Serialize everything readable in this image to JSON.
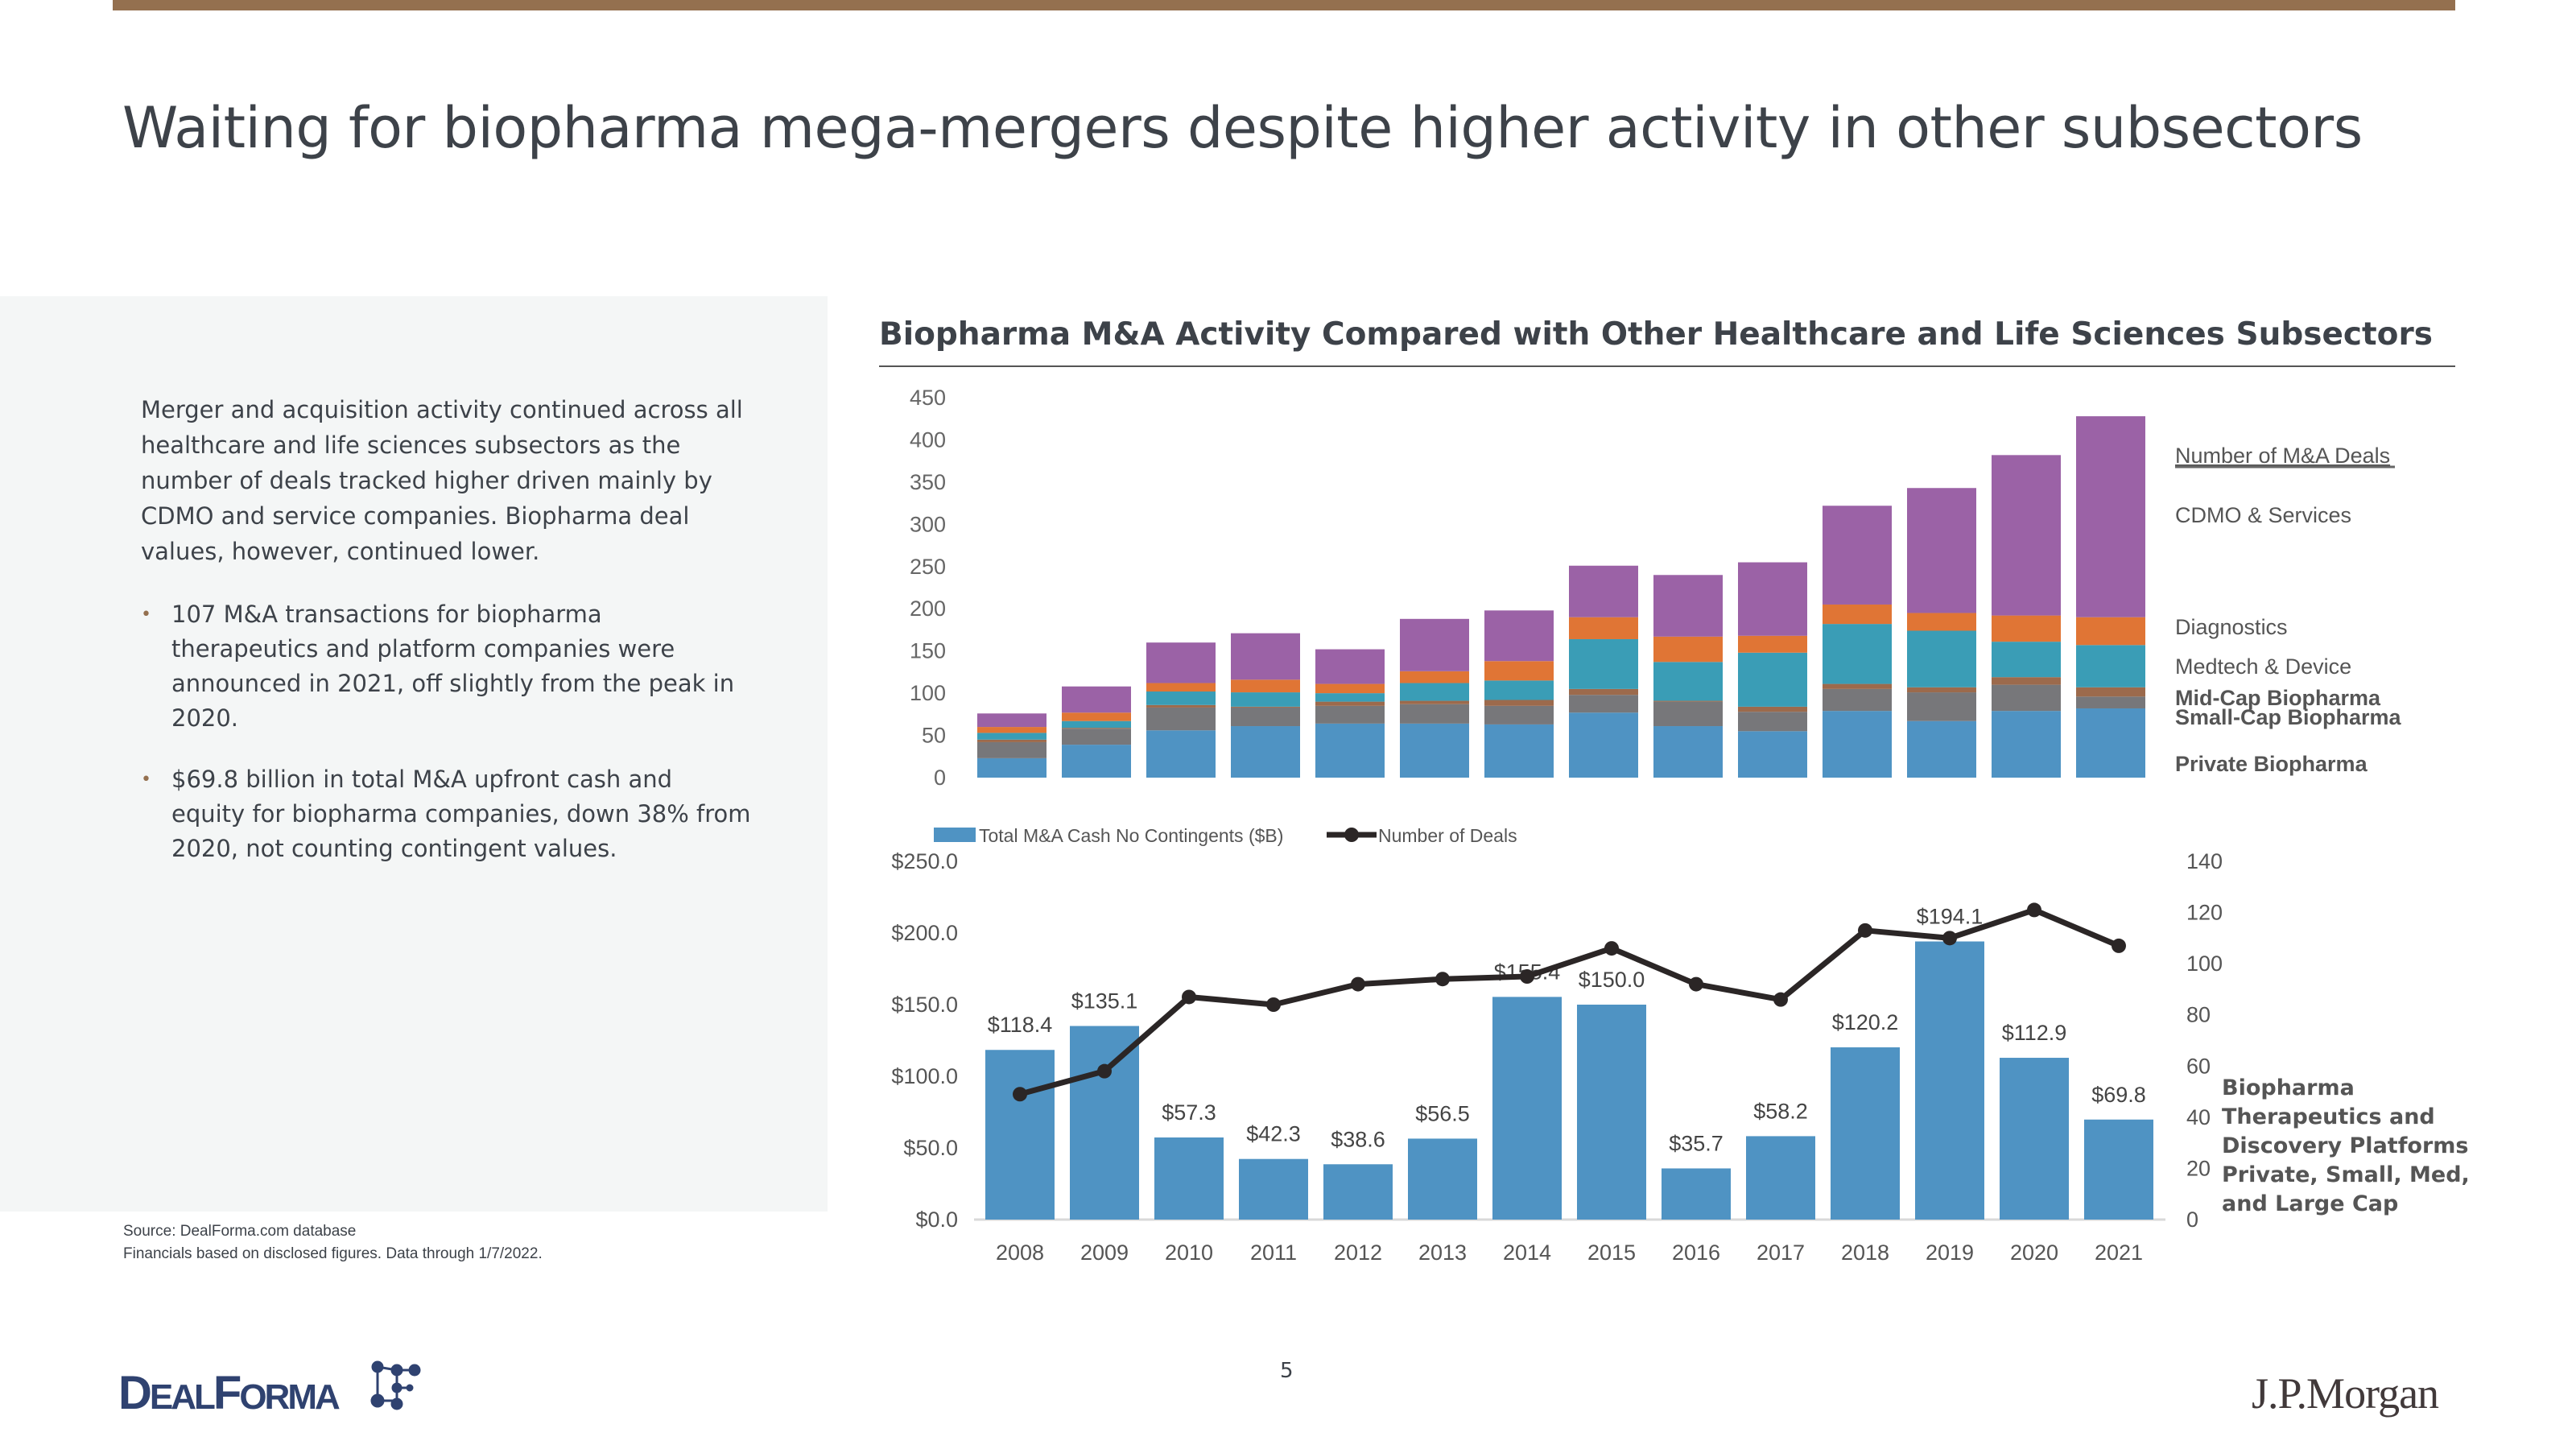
{
  "page": {
    "title": "Waiting for biopharma mega-mergers despite higher activity in other subsectors",
    "page_number": "5",
    "accent_color": "#94704f"
  },
  "summary": {
    "paragraph": "Merger and acquisition activity continued across all healthcare and life sciences subsectors as the number of deals tracked higher driven mainly by CDMO and service companies. Biopharma deal values, however, continued lower.",
    "bullets": [
      "107 M&A transactions for biopharma therapeutics and platform companies were announced in 2021, off slightly from the peak in 2020.",
      "$69.8 billion in total M&A upfront cash and equity for biopharma companies, down 38% from 2020, not counting contingent values."
    ]
  },
  "footer": {
    "source_line1": "Source: DealForma.com database",
    "source_line2": "Financials based on disclosed figures. Data through 1/7/2022.",
    "logo_left": "DealForma",
    "logo_right": "J.P.Morgan"
  },
  "chart_data": [
    {
      "type": "bar",
      "stacked": true,
      "title": "Biopharma M&A Activity Compared with Other Healthcare and Life Sciences Subsectors",
      "legend_title": "Number of M&A Deals",
      "categories": [
        "2008",
        "2009",
        "2010",
        "2011",
        "2012",
        "2013",
        "2014",
        "2015",
        "2016",
        "2017",
        "2018",
        "2019",
        "2020",
        "2021"
      ],
      "ylim": [
        0,
        450
      ],
      "yticks": [
        "0",
        "50",
        "100",
        "150",
        "200",
        "250",
        "300",
        "350",
        "400",
        "450"
      ],
      "series": [
        {
          "name": "Private Biopharma",
          "color": "#4f93c3",
          "values": [
            23,
            39,
            56,
            61,
            64,
            64,
            63,
            77,
            61,
            55,
            79,
            67,
            79,
            82
          ]
        },
        {
          "name": "Small-Cap Biopharma",
          "color": "#77777a",
          "values": [
            19,
            19,
            27,
            22,
            21,
            23,
            22,
            21,
            29,
            23,
            26,
            34,
            31,
            14
          ]
        },
        {
          "name": "Mid-Cap Biopharma",
          "color": "#9c6a4c",
          "values": [
            3,
            1,
            3,
            1,
            5,
            4,
            7,
            7,
            1,
            6,
            6,
            6,
            9,
            11
          ]
        },
        {
          "name": "Medtech & Device",
          "color": "#3a9db6",
          "values": [
            8,
            8,
            16,
            17,
            10,
            21,
            23,
            59,
            46,
            64,
            71,
            67,
            42,
            50
          ]
        },
        {
          "name": "Diagnostics",
          "color": "#e07535",
          "values": [
            7,
            10,
            10,
            15,
            11,
            14,
            23,
            26,
            30,
            20,
            23,
            21,
            31,
            33
          ]
        },
        {
          "name": "CDMO & Services",
          "color": "#9b62a6",
          "values": [
            16,
            31,
            48,
            55,
            41,
            62,
            60,
            61,
            73,
            87,
            117,
            148,
            190,
            238
          ]
        }
      ]
    },
    {
      "type": "bar",
      "title": "",
      "categories": [
        "2008",
        "2009",
        "2010",
        "2011",
        "2012",
        "2013",
        "2014",
        "2015",
        "2016",
        "2017",
        "2018",
        "2019",
        "2020",
        "2021"
      ],
      "ylim": [
        0,
        250
      ],
      "yticks": [
        "$0.0",
        "$50.0",
        "$100.0",
        "$150.0",
        "$200.0",
        "$250.0"
      ],
      "y2lim": [
        0,
        140
      ],
      "y2ticks": [
        "0",
        "20",
        "40",
        "60",
        "80",
        "100",
        "120",
        "140"
      ],
      "series": [
        {
          "name": "Total M&A Cash No Contingents ($B)",
          "type": "bar",
          "axis": "left",
          "color": "#4f93c3",
          "values": [
            118.4,
            135.1,
            57.3,
            42.3,
            38.6,
            56.5,
            155.4,
            150.0,
            35.7,
            58.2,
            120.2,
            194.1,
            112.9,
            69.8
          ],
          "labels": [
            "$118.4",
            "$135.1",
            "$57.3",
            "$42.3",
            "$38.6",
            "$56.5",
            "$155.4",
            "$150.0",
            "$35.7",
            "$58.2",
            "$120.2",
            "$194.1",
            "$112.9",
            "$69.8"
          ]
        },
        {
          "name": "Number of Deals",
          "type": "line",
          "axis": "right",
          "color": "#2b2626",
          "values": [
            49,
            58,
            87,
            84,
            92,
            94,
            95,
            106,
            92,
            86,
            113,
            110,
            121,
            107
          ]
        }
      ],
      "side_note": [
        "Biopharma",
        "Therapeutics and",
        "Discovery Platforms",
        "Private, Small, Med,",
        "and Large Cap"
      ]
    }
  ]
}
